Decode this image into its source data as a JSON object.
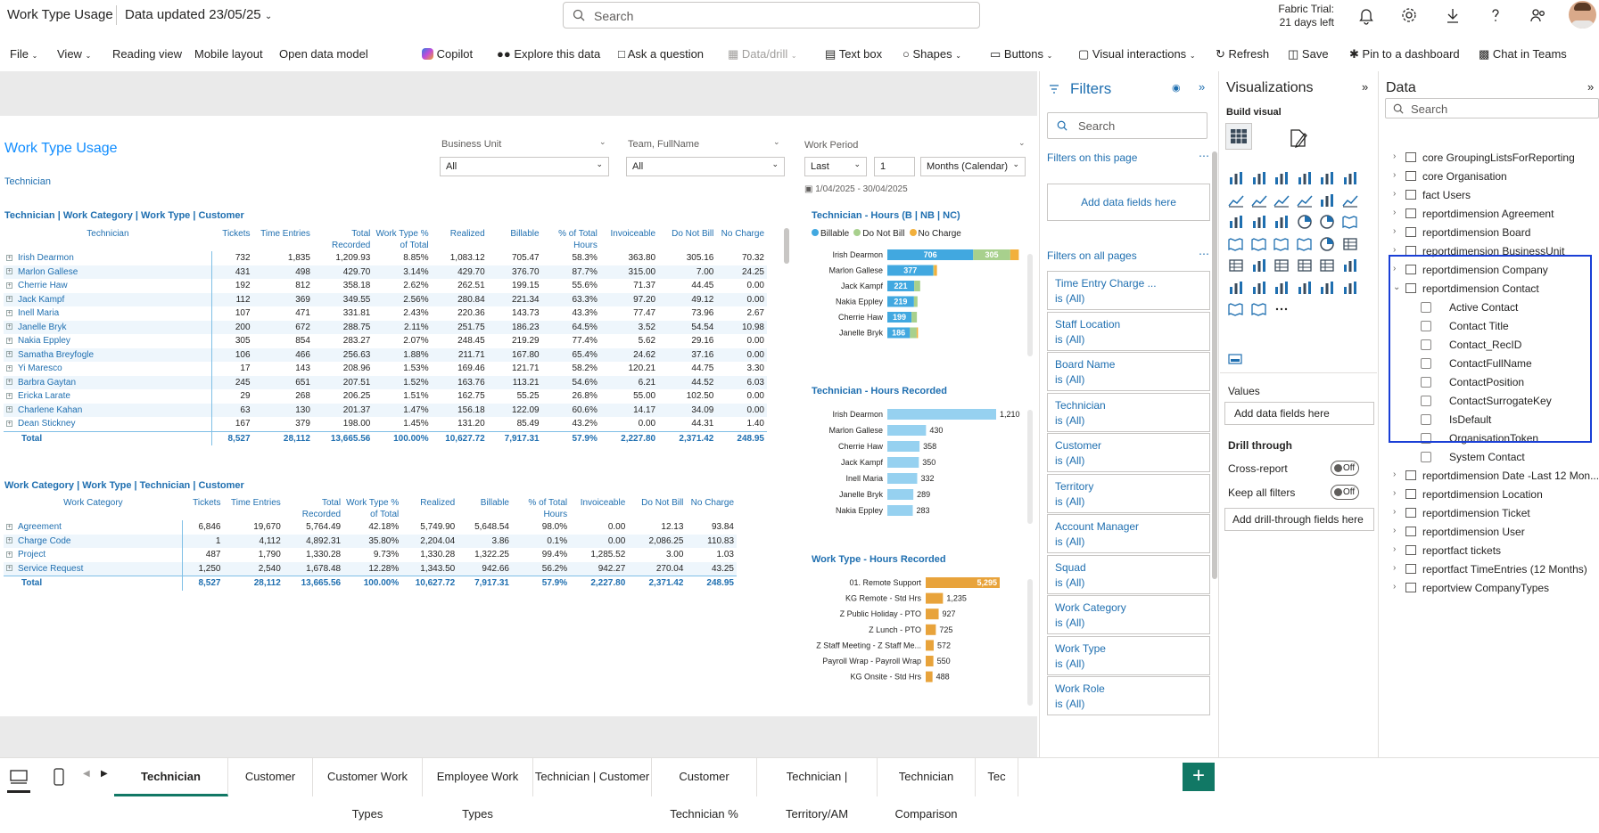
{
  "header": {
    "app_title": "Work Type Usage",
    "data_updated": "Data updated 23/05/25",
    "search_placeholder": "Search",
    "trial_line1": "Fabric Trial:",
    "trial_line2": "21 days left"
  },
  "menu": {
    "file": "File",
    "view": "View",
    "reading_view": "Reading view",
    "mobile_layout": "Mobile layout",
    "open_data_model": "Open data model",
    "copilot": "Copilot",
    "explore": "Explore this data",
    "ask": "Ask a question",
    "data_drill": "Data/drill",
    "text_box": "Text box",
    "shapes": "Shapes",
    "buttons": "Buttons",
    "visual_interactions": "Visual interactions",
    "refresh": "Refresh",
    "save": "Save",
    "pin": "Pin to a dashboard",
    "chat": "Chat in Teams"
  },
  "report": {
    "title": "Work Type Usage",
    "subtitle": "Technician",
    "slicers": {
      "bu_label": "Business Unit",
      "bu_value": "All",
      "team_label": "Team, FullName",
      "team_value": "All",
      "period_label": "Work Period",
      "period_mode": "Last",
      "period_n": "1",
      "period_unit": "Months (Calendar)",
      "period_range": "1/04/2025 - 30/04/2025"
    },
    "matrix1": {
      "title": "Technician | Work Category | Work Type | Customer",
      "columns": [
        "Technician",
        "Tickets",
        "Time Entries",
        "Total Recorded",
        "Work Type % of Total",
        "Realized",
        "Billable",
        "% of Total Hours",
        "Invoiceable",
        "Do Not Bill",
        "No Charge"
      ],
      "rows": [
        [
          "Irish Dearmon",
          "732",
          "1,835",
          "1,209.93",
          "8.85%",
          "1,083.12",
          "705.47",
          "58.3%",
          "363.80",
          "305.16",
          "70.32"
        ],
        [
          "Marlon Gallese",
          "431",
          "498",
          "429.70",
          "3.14%",
          "429.70",
          "376.70",
          "87.7%",
          "315.00",
          "7.00",
          "24.25"
        ],
        [
          "Cherrie Haw",
          "192",
          "812",
          "358.18",
          "2.62%",
          "262.51",
          "199.15",
          "55.6%",
          "71.37",
          "44.45",
          "0.00"
        ],
        [
          "Jack Kampf",
          "112",
          "369",
          "349.55",
          "2.56%",
          "280.84",
          "221.34",
          "63.3%",
          "97.20",
          "49.12",
          "0.00"
        ],
        [
          "Inell Maria",
          "107",
          "471",
          "331.81",
          "2.43%",
          "220.36",
          "143.73",
          "43.3%",
          "77.47",
          "73.96",
          "2.67"
        ],
        [
          "Janelle Bryk",
          "200",
          "672",
          "288.75",
          "2.11%",
          "251.75",
          "186.23",
          "64.5%",
          "3.52",
          "54.54",
          "10.98"
        ],
        [
          "Nakia Eppley",
          "305",
          "854",
          "283.27",
          "2.07%",
          "248.45",
          "219.29",
          "77.4%",
          "5.62",
          "29.16",
          "0.00"
        ],
        [
          "Samatha Breyfogle",
          "106",
          "466",
          "256.63",
          "1.88%",
          "211.71",
          "167.80",
          "65.4%",
          "24.62",
          "37.16",
          "0.00"
        ],
        [
          "Yi Maresco",
          "17",
          "143",
          "208.96",
          "1.53%",
          "169.46",
          "121.71",
          "58.2%",
          "120.21",
          "44.75",
          "3.30"
        ],
        [
          "Barbra Gaytan",
          "245",
          "651",
          "207.51",
          "1.52%",
          "163.76",
          "113.21",
          "54.6%",
          "6.21",
          "44.52",
          "6.03"
        ],
        [
          "Ericka Larate",
          "29",
          "268",
          "206.25",
          "1.51%",
          "162.75",
          "55.25",
          "26.8%",
          "55.00",
          "102.50",
          "0.00"
        ],
        [
          "Charlene Kahan",
          "63",
          "130",
          "201.37",
          "1.47%",
          "156.18",
          "122.09",
          "60.6%",
          "14.17",
          "34.09",
          "0.00"
        ],
        [
          "Dean Stickney",
          "167",
          "379",
          "198.00",
          "1.45%",
          "131.20",
          "85.49",
          "43.2%",
          "0.00",
          "44.31",
          "1.40"
        ]
      ],
      "total": [
        "Total",
        "8,527",
        "28,112",
        "13,665.56",
        "100.00%",
        "10,627.72",
        "7,917.31",
        "57.9%",
        "2,227.80",
        "2,371.42",
        "248.95"
      ]
    },
    "matrix2": {
      "title": "Work Category | Work Type | Technician | Customer",
      "columns": [
        "Work Category",
        "Tickets",
        "Time Entries",
        "Total Recorded",
        "Work Type % of Total",
        "Realized",
        "Billable",
        "% of Total Hours",
        "Invoiceable",
        "Do Not Bill",
        "No Charge"
      ],
      "rows": [
        [
          "Agreement",
          "6,846",
          "19,670",
          "5,764.49",
          "42.18%",
          "5,749.90",
          "5,648.54",
          "98.0%",
          "0.00",
          "12.13",
          "93.84"
        ],
        [
          "Charge Code",
          "1",
          "4,112",
          "4,892.31",
          "35.80%",
          "2,204.04",
          "3.86",
          "0.1%",
          "0.00",
          "2,086.25",
          "110.83"
        ],
        [
          "Project",
          "487",
          "1,790",
          "1,330.28",
          "9.73%",
          "1,330.28",
          "1,322.25",
          "99.4%",
          "1,285.52",
          "3.00",
          "1.03"
        ],
        [
          "Service Request",
          "1,250",
          "2,540",
          "1,678.48",
          "12.28%",
          "1,343.50",
          "942.66",
          "56.2%",
          "942.27",
          "270.04",
          "43.25"
        ]
      ],
      "total": [
        "Total",
        "8,527",
        "28,112",
        "13,665.56",
        "100.00%",
        "10,627.72",
        "7,917.31",
        "57.9%",
        "2,227.80",
        "2,371.42",
        "248.95"
      ]
    }
  },
  "chart_data": [
    {
      "type": "bar",
      "title": "Technician - Hours (B | NB | NC)",
      "legend": [
        "Billable",
        "Do Not Bill",
        "No Charge"
      ],
      "colors": [
        "#41a8e0",
        "#a8d08d",
        "#f2b03c"
      ],
      "categories": [
        "Irish Dearmon",
        "Marlon Gallese",
        "Jack Kampf",
        "Nakia Eppley",
        "Cherrie Haw",
        "Janelle Bryk"
      ],
      "series": [
        {
          "name": "Billable",
          "values": [
            706,
            377,
            221,
            219,
            199,
            186
          ]
        },
        {
          "name": "Do Not Bill",
          "values": [
            305,
            7,
            49,
            29,
            44,
            55
          ]
        },
        {
          "name": "No Charge",
          "values": [
            70,
            24,
            0,
            0,
            0,
            11
          ]
        }
      ]
    },
    {
      "type": "bar",
      "title": "Technician - Hours Recorded",
      "colors": [
        "#96d1f0"
      ],
      "categories": [
        "Irish Dearmon",
        "Marlon Gallese",
        "Cherrie Haw",
        "Jack Kampf",
        "Inell Maria",
        "Janelle Bryk",
        "Nakia Eppley"
      ],
      "values": [
        1210,
        430,
        358,
        350,
        332,
        289,
        283
      ],
      "value_labels": [
        "1,210",
        "430",
        "358",
        "350",
        "332",
        "289",
        "283"
      ]
    },
    {
      "type": "bar",
      "title": "Work Type - Hours Recorded",
      "colors": [
        "#e8a33b"
      ],
      "categories": [
        "01. Remote Support",
        "KG Remote - Std Hrs",
        "Z Public Holiday - PTO",
        "Z Lunch - PTO",
        "Z Staff Meeting - Z Staff Me...",
        "Payroll Wrap - Payroll Wrap",
        "KG Onsite - Std Hrs"
      ],
      "values": [
        5295,
        1235,
        927,
        725,
        572,
        550,
        488
      ],
      "value_labels": [
        "5,295",
        "1,235",
        "927",
        "725",
        "572",
        "550",
        "488"
      ]
    }
  ],
  "filters": {
    "title": "Filters",
    "search": "Search",
    "on_page": "Filters on this page",
    "add": "Add data fields here",
    "on_all": "Filters on all pages",
    "cards": [
      {
        "name": "Time Entry Charge ...",
        "state": "is (All)"
      },
      {
        "name": "Staff Location",
        "state": "is (All)"
      },
      {
        "name": "Board Name",
        "state": "is (All)"
      },
      {
        "name": "Technician",
        "state": "is (All)"
      },
      {
        "name": "Customer",
        "state": "is (All)"
      },
      {
        "name": "Territory",
        "state": "is (All)"
      },
      {
        "name": "Account Manager",
        "state": "is (All)"
      },
      {
        "name": "Squad",
        "state": "is (All)"
      },
      {
        "name": "Work Category",
        "state": "is (All)"
      },
      {
        "name": "Work Type",
        "state": "is (All)"
      },
      {
        "name": "Work Role",
        "state": "is (All)"
      }
    ]
  },
  "viz": {
    "title": "Visualizations",
    "build": "Build visual",
    "values": "Values",
    "add": "Add data fields here",
    "drill": "Drill through",
    "cross": "Cross-report",
    "keep": "Keep all filters",
    "off": "Off",
    "add_drill": "Add drill-through fields here"
  },
  "data": {
    "title": "Data",
    "search": "Search",
    "tables_top": [
      "core GroupingListsForReporting",
      "core Organisation",
      "fact Users",
      "reportdimension Agreement",
      "reportdimension Board",
      "reportdimension BusinessUnit",
      "reportdimension Company"
    ],
    "expanded": "reportdimension Contact",
    "fields": [
      "Active Contact",
      "Contact Title",
      "Contact_RecID",
      "ContactFullName",
      "ContactPosition",
      "ContactSurrogateKey",
      "IsDefault",
      "OrganisationToken",
      "System Contact"
    ],
    "tables_bottom": [
      "reportdimension Date -Last 12 Mon...",
      "reportdimension Location",
      "reportdimension Ticket",
      "reportdimension User",
      "reportfact tickets",
      "reportfact TimeEntries (12 Months)",
      "reportview CompanyTypes"
    ]
  },
  "tabs": [
    "Technician",
    "Customer",
    "Customer Work Types",
    "Employee Work Types",
    "Technician | Customer",
    "Customer Technician %",
    "Technician | Territory/AM",
    "Technician Comparison",
    "Tec"
  ]
}
